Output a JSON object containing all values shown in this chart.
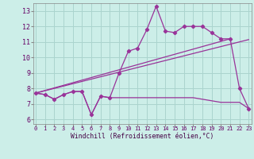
{
  "xlabel": "Windchill (Refroidissement éolien,°C)",
  "bg_color": "#cceee8",
  "grid_color": "#aad4ce",
  "line_color": "#993399",
  "x_ticks": [
    0,
    1,
    2,
    3,
    4,
    5,
    6,
    7,
    8,
    9,
    10,
    11,
    12,
    13,
    14,
    15,
    16,
    17,
    18,
    19,
    20,
    21,
    22,
    23
  ],
  "y_ticks": [
    6,
    7,
    8,
    9,
    10,
    11,
    12,
    13
  ],
  "ylim": [
    5.7,
    13.5
  ],
  "xlim": [
    -0.3,
    23.3
  ],
  "main_x": [
    0,
    1,
    2,
    3,
    4,
    5,
    6,
    7,
    8,
    9,
    10,
    11,
    12,
    13,
    14,
    15,
    16,
    17,
    18,
    19,
    20,
    21,
    22,
    23
  ],
  "main_y": [
    7.7,
    7.6,
    7.3,
    7.6,
    7.8,
    7.8,
    6.3,
    7.5,
    7.4,
    9.0,
    10.4,
    10.6,
    11.8,
    13.3,
    11.7,
    11.6,
    12.0,
    12.0,
    12.0,
    11.6,
    11.2,
    11.2,
    8.0,
    6.7
  ],
  "flat_x": [
    0,
    1,
    2,
    3,
    4,
    5,
    6,
    7,
    8,
    9,
    10,
    11,
    12,
    13,
    14,
    15,
    16,
    17,
    18,
    19,
    20,
    21,
    22,
    23
  ],
  "flat_y": [
    7.7,
    7.6,
    7.3,
    7.6,
    7.8,
    7.8,
    6.3,
    7.5,
    7.4,
    7.4,
    7.4,
    7.4,
    7.4,
    7.4,
    7.4,
    7.4,
    7.4,
    7.4,
    7.3,
    7.2,
    7.1,
    7.1,
    7.1,
    6.7
  ],
  "trend1_x": [
    0,
    23
  ],
  "trend1_y": [
    7.7,
    11.15
  ],
  "trend2_x": [
    0,
    21
  ],
  "trend2_y": [
    7.7,
    11.2
  ]
}
